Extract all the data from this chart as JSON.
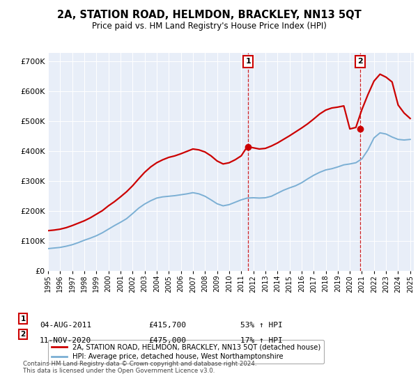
{
  "title": "2A, STATION ROAD, HELMDON, BRACKLEY, NN13 5QT",
  "subtitle": "Price paid vs. HM Land Registry's House Price Index (HPI)",
  "legend_property": "2A, STATION ROAD, HELMDON, BRACKLEY, NN13 5QT (detached house)",
  "legend_hpi": "HPI: Average price, detached house, West Northamptonshire",
  "property_color": "#cc0000",
  "hpi_color": "#7bafd4",
  "background_color": "#e8eef8",
  "sale1_date": "04-AUG-2011",
  "sale1_price": 415700,
  "sale1_label": "1",
  "sale1_pct": "53% ↑ HPI",
  "sale2_date": "11-NOV-2020",
  "sale2_price": 475000,
  "sale2_label": "2",
  "sale2_pct": "17% ↑ HPI",
  "footer": "Contains HM Land Registry data © Crown copyright and database right 2024.\nThis data is licensed under the Open Government Licence v3.0.",
  "years": [
    1995,
    1995.5,
    1996,
    1996.5,
    1997,
    1997.5,
    1998,
    1998.5,
    1999,
    1999.5,
    2000,
    2000.5,
    2001,
    2001.5,
    2002,
    2002.5,
    2003,
    2003.5,
    2004,
    2004.5,
    2005,
    2005.5,
    2006,
    2006.5,
    2007,
    2007.5,
    2008,
    2008.5,
    2009,
    2009.5,
    2010,
    2010.5,
    2011,
    2011.5,
    2012,
    2012.5,
    2013,
    2013.5,
    2014,
    2014.5,
    2015,
    2015.5,
    2016,
    2016.5,
    2017,
    2017.5,
    2018,
    2018.5,
    2019,
    2019.5,
    2020,
    2020.5,
    2021,
    2021.5,
    2022,
    2022.5,
    2023,
    2023.5,
    2024,
    2024.5,
    2025
  ],
  "hpi_values": [
    75000,
    77000,
    79000,
    83000,
    88000,
    95000,
    103000,
    110000,
    118000,
    128000,
    140000,
    152000,
    163000,
    175000,
    192000,
    210000,
    224000,
    235000,
    244000,
    248000,
    250000,
    252000,
    255000,
    258000,
    262000,
    258000,
    250000,
    238000,
    225000,
    218000,
    222000,
    230000,
    238000,
    244000,
    245000,
    244000,
    245000,
    250000,
    260000,
    270000,
    278000,
    285000,
    295000,
    308000,
    320000,
    330000,
    338000,
    342000,
    348000,
    355000,
    358000,
    362000,
    375000,
    405000,
    445000,
    462000,
    458000,
    448000,
    440000,
    438000,
    440000
  ],
  "prop_values": [
    135000,
    137000,
    140000,
    145000,
    152000,
    160000,
    168000,
    178000,
    190000,
    202000,
    218000,
    232000,
    248000,
    265000,
    285000,
    308000,
    330000,
    348000,
    362000,
    372000,
    380000,
    385000,
    392000,
    400000,
    408000,
    405000,
    398000,
    385000,
    368000,
    358000,
    362000,
    372000,
    385000,
    415700,
    412000,
    408000,
    410000,
    418000,
    428000,
    440000,
    452000,
    465000,
    478000,
    492000,
    508000,
    525000,
    538000,
    545000,
    548000,
    552000,
    475000,
    480000,
    540000,
    590000,
    635000,
    658000,
    648000,
    632000,
    555000,
    528000,
    510000
  ],
  "ylim": [
    0,
    730000
  ],
  "yticks": [
    0,
    100000,
    200000,
    300000,
    400000,
    500000,
    600000,
    700000
  ],
  "sale1_year": 2011.58,
  "sale2_year": 2020.86,
  "xlim_min": 1995,
  "xlim_max": 2025.3
}
